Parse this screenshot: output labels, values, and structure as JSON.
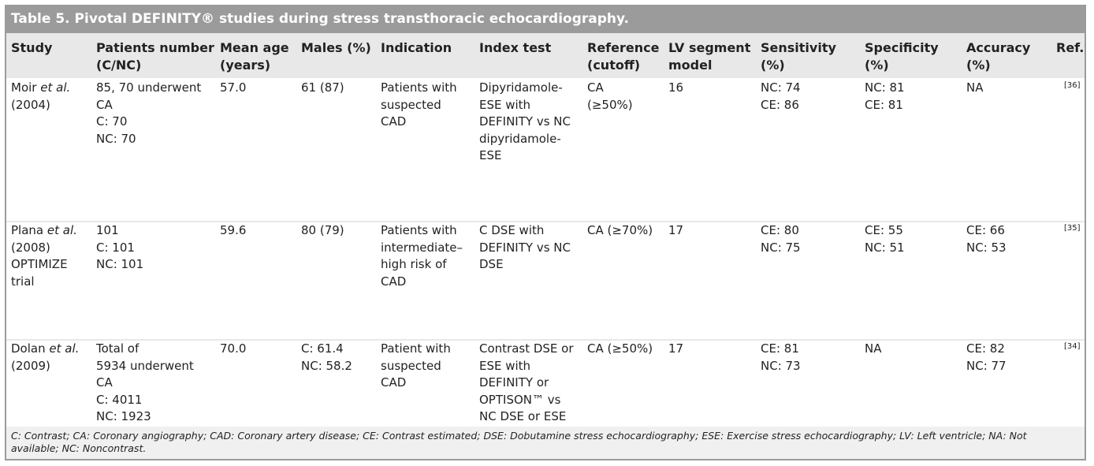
{
  "title": "Table 5. Pivotal DEFINITY® studies during stress transthoracic echocardiography.",
  "table": {
    "columns": [
      [
        "Study"
      ],
      [
        "Patients number",
        "(C/NC)"
      ],
      [
        "Mean age",
        "(years)"
      ],
      [
        "Males (%)"
      ],
      [
        "Indication"
      ],
      [
        "Index test"
      ],
      [
        "Reference",
        "(cutoff)"
      ],
      [
        "LV segment",
        "model"
      ],
      [
        "Sensitivity",
        "(%)"
      ],
      [
        "Specificity",
        "(%)"
      ],
      [
        "Accuracy",
        "(%)"
      ],
      [
        "Ref."
      ]
    ],
    "rows": [
      {
        "study": {
          "author": "Moir",
          "etal": "et al.",
          "detail": [
            "(2004)"
          ]
        },
        "cells": [
          [
            "85, 70 underwent",
            "CA",
            "C: 70",
            "NC: 70"
          ],
          [
            "57.0"
          ],
          [
            "61 (87)"
          ],
          [
            "Patients with",
            "suspected",
            "CAD"
          ],
          [
            "Dipyridamole-",
            "ESE with",
            "DEFINITY vs NC",
            "dipyridamole-",
            "ESE"
          ],
          [
            "CA",
            "(≥50%)"
          ],
          [
            "16"
          ],
          [
            "NC: 74",
            "CE: 86"
          ],
          [
            "NC: 81",
            "CE: 81"
          ],
          [
            "NA"
          ]
        ],
        "ref": "[36]"
      },
      {
        "study": {
          "author": "Plana",
          "etal": "et al.",
          "detail": [
            "(2008)",
            "OPTIMIZE",
            "trial"
          ]
        },
        "cells": [
          [
            "101",
            "C: 101",
            "NC: 101"
          ],
          [
            "59.6"
          ],
          [
            "80 (79)"
          ],
          [
            "Patients with",
            "intermediate–",
            "high risk of",
            "CAD"
          ],
          [
            "C DSE with",
            "DEFINITY vs NC",
            "DSE"
          ],
          [
            "CA (≥70%)"
          ],
          [
            "17"
          ],
          [
            "CE: 80",
            "NC: 75"
          ],
          [
            "CE: 55",
            "NC: 51"
          ],
          [
            "CE: 66",
            "NC: 53"
          ]
        ],
        "ref": "[35]"
      },
      {
        "study": {
          "author": "Dolan",
          "etal": "et al.",
          "detail": [
            "(2009)"
          ]
        },
        "cells": [
          [
            "Total of",
            "5934 underwent",
            "CA",
            "C: 4011",
            "NC: 1923"
          ],
          [
            "70.0"
          ],
          [
            "C: 61.4",
            "NC: 58.2"
          ],
          [
            "Patient with",
            "suspected",
            "CAD"
          ],
          [
            "Contrast DSE or",
            "ESE with",
            "DEFINITY or",
            "OPTISON™ vs",
            "NC DSE or ESE"
          ],
          [
            "CA (≥50%)"
          ],
          [
            "17"
          ],
          [
            "CE: 81",
            "NC: 73"
          ],
          [
            "NA"
          ],
          [
            "CE: 82",
            "NC: 77"
          ]
        ],
        "ref": "[34]"
      }
    ],
    "footnote": "C: Contrast; CA: Coronary angiography; CAD: Coronary artery disease; CE: Contrast estimated; DSE: Dobutamine stress echocardiography; ESE: Exercise stress echocardiography; LV: Left ventricle; NA: Not available; NC: Noncontrast."
  }
}
